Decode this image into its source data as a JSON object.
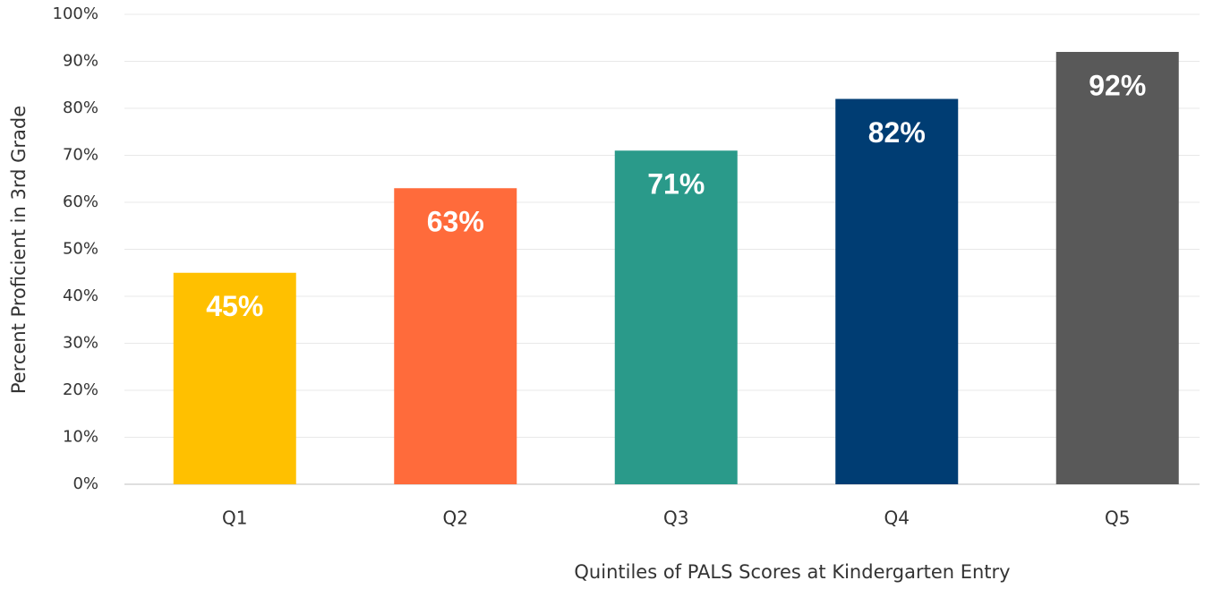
{
  "chart_data": {
    "type": "bar",
    "x_label": "Quintiles of PALS Scores at Kindergarten Entry",
    "y_label": "Percent Proficient in 3rd Grade",
    "categories": [
      "Q1",
      "Q2",
      "Q3",
      "Q4",
      "Q5"
    ],
    "values": [
      45,
      63,
      71,
      82,
      92
    ],
    "value_labels": [
      "45%",
      "63%",
      "71%",
      "82%",
      "92%"
    ],
    "colors": [
      "#ffc000",
      "#ff6b3b",
      "#2a9a8a",
      "#003d73",
      "#595959"
    ],
    "ylim": [
      0,
      100
    ],
    "yticks": [
      {
        "value": 0,
        "label": "0%"
      },
      {
        "value": 10,
        "label": "10%"
      },
      {
        "value": 20,
        "label": "20%"
      },
      {
        "value": 30,
        "label": "30%"
      },
      {
        "value": 40,
        "label": "40%"
      },
      {
        "value": 50,
        "label": "50%"
      },
      {
        "value": 60,
        "label": "60%"
      },
      {
        "value": 70,
        "label": "70%"
      },
      {
        "value": 80,
        "label": "80%"
      },
      {
        "value": 90,
        "label": "90%"
      },
      {
        "value": 100,
        "label": "100%"
      }
    ],
    "grid": true
  }
}
